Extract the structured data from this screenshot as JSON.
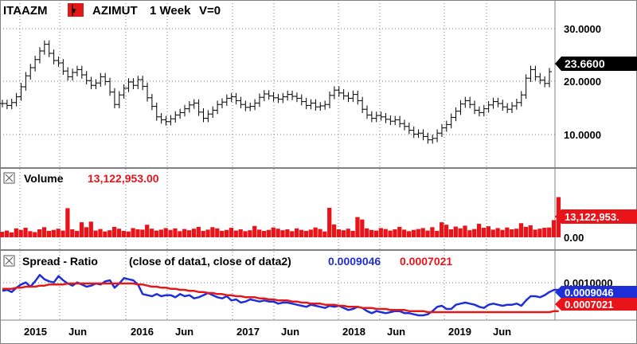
{
  "main_panel": {
    "symbol": "ITAAZM",
    "name": "AZIMUT",
    "interval": "1 Week",
    "volume_flag": "V=0",
    "last_price": "23.6600",
    "y_ticks": [
      "30.0000",
      "20.0000",
      "10.0000"
    ]
  },
  "volume_panel": {
    "title": "Volume",
    "value_text": "13,122,953.00",
    "last_badge": "13,122,953.",
    "y_tick": "0.00"
  },
  "spread_panel": {
    "title": "Spread - Ratio",
    "params": "(close of data1,  close of data2)",
    "value1": "0.0009046",
    "value2": "0.0007021",
    "y_tick": "0.0010000"
  },
  "x_axis": {
    "labels": [
      "2015",
      "Jun",
      "2016",
      "Jun",
      "2017",
      "Jun",
      "2018",
      "Jun",
      "2019",
      "Jun"
    ]
  },
  "colors": {
    "price": "#000000",
    "volume": "#e8141a",
    "ratio": "#1f2fd8",
    "average": "#e01a1a",
    "grid": "#7a7a7a"
  },
  "chart_data": {
    "type": "line",
    "x_range": [
      "2014-10",
      "2019-12"
    ],
    "series": [
      {
        "name": "ITAAZM",
        "values": [
          17.0,
          16.6,
          17.2,
          18.4,
          20.5,
          22.8,
          24.5,
          26.2,
          28.0,
          29.4,
          27.5,
          26.0,
          25.5,
          23.8,
          22.6,
          23.5,
          24.1,
          23.0,
          21.8,
          20.8,
          21.3,
          22.6,
          21.6,
          19.4,
          16.8,
          18.8,
          20.2,
          21.5,
          20.8,
          22.0,
          20.6,
          18.2,
          16.4,
          14.2,
          13.6,
          13.2,
          13.8,
          14.6,
          15.1,
          15.9,
          16.7,
          17.1,
          15.2,
          13.9,
          14.8,
          15.6,
          16.8,
          17.3,
          18.1,
          18.4,
          17.6,
          16.8,
          16.2,
          16.4,
          17.1,
          18.3,
          19.0,
          18.6,
          18.2,
          17.9,
          18.4,
          18.9,
          18.5,
          18.1,
          17.4,
          16.6,
          17.1,
          16.3,
          16.5,
          16.8,
          18.7,
          19.8,
          19.2,
          18.6,
          18.1,
          18.9,
          17.6,
          15.8,
          14.6,
          13.9,
          14.5,
          14.2,
          13.7,
          13.3,
          13.6,
          12.8,
          12.2,
          11.4,
          10.6,
          10.8,
          10.1,
          9.4,
          9.7,
          10.8,
          11.9,
          12.6,
          14.1,
          15.4,
          16.9,
          17.6,
          16.8,
          15.6,
          15.1,
          15.9,
          16.7,
          17.4,
          17.0,
          16.3,
          15.8,
          16.5,
          17.2,
          18.8,
          22.3,
          24.1,
          22.6,
          21.9,
          21.2,
          23.66
        ]
      },
      {
        "name": "Volume",
        "values": [
          1.8,
          2.2,
          1.6,
          2.9,
          2.4,
          3.1,
          2.0,
          1.7,
          2.6,
          3.3,
          2.1,
          2.4,
          2.8,
          2.2,
          9.5,
          2.6,
          2.1,
          4.9,
          3.3,
          5.1,
          2.2,
          2.7,
          1.9,
          2.3,
          3.4,
          2.8,
          2.1,
          1.9,
          3.0,
          2.6,
          2.5,
          4.1,
          2.8,
          2.2,
          2.5,
          3.0,
          2.4,
          2.9,
          2.0,
          2.7,
          2.3,
          2.8,
          3.4,
          2.1,
          2.5,
          3.3,
          2.9,
          2.1,
          2.4,
          3.1,
          2.2,
          2.6,
          2.0,
          2.3,
          3.7,
          2.5,
          2.1,
          2.4,
          3.2,
          2.8,
          2.3,
          2.6,
          2.0,
          2.9,
          2.4,
          2.1,
          2.5,
          3.2,
          2.7,
          1.9,
          9.6,
          4.2,
          2.6,
          2.3,
          2.8,
          2.1,
          6.6,
          5.8,
          2.9,
          2.4,
          2.2,
          3.0,
          2.7,
          2.2,
          2.6,
          3.4,
          2.5,
          2.0,
          2.4,
          2.7,
          3.0,
          2.2,
          3.3,
          2.1,
          4.9,
          4.1,
          2.6,
          3.5,
          2.9,
          3.8,
          2.3,
          2.7,
          4.4,
          3.1,
          3.6,
          2.5,
          3.0,
          2.4,
          3.2,
          2.6,
          2.8,
          4.6,
          3.4,
          3.9,
          2.5,
          2.8,
          3.1,
          3.2,
          5.6,
          13.1
        ]
      },
      {
        "name": "Ratio",
        "values": [
          0.00089,
          0.0009,
          0.00088,
          0.00092,
          0.00095,
          0.00097,
          0.00093,
          0.00098,
          0.00104,
          0.001,
          0.00098,
          0.00097,
          0.00103,
          0.00099,
          0.00096,
          0.00094,
          0.00097,
          0.00095,
          0.00093,
          0.00094,
          0.00096,
          0.00095,
          0.00098,
          0.00099,
          0.00092,
          0.00096,
          0.00101,
          0.001,
          0.00099,
          0.00095,
          0.00086,
          0.00085,
          0.00084,
          0.00086,
          0.00084,
          0.00085,
          0.00085,
          0.00083,
          0.00086,
          0.00084,
          0.00085,
          0.00082,
          0.00083,
          0.00085,
          0.00087,
          0.00085,
          0.00083,
          0.00082,
          0.00084,
          0.0008,
          0.00081,
          0.00078,
          0.00079,
          0.00081,
          0.0008,
          0.00079,
          0.0008,
          0.00079,
          0.00079,
          0.00077,
          0.00078,
          0.00078,
          0.00077,
          0.00076,
          0.00075,
          0.00074,
          0.00076,
          0.00075,
          0.00074,
          0.00073,
          0.00075,
          0.00074,
          0.00075,
          0.00073,
          0.00071,
          0.00072,
          0.00074,
          0.00073,
          0.0007,
          0.00068,
          0.0007,
          0.00069,
          0.00068,
          0.00069,
          0.0007,
          0.0007,
          0.00068,
          0.00068,
          0.00067,
          0.00066,
          0.00066,
          0.00067,
          0.0007,
          0.00074,
          0.00075,
          0.00072,
          0.00072,
          0.00076,
          0.00077,
          0.00078,
          0.00077,
          0.00076,
          0.00074,
          0.00073,
          0.00076,
          0.00077,
          0.00076,
          0.00075,
          0.00076,
          0.00076,
          0.00077,
          0.00075,
          0.0008,
          0.00084,
          0.00084,
          0.00083,
          0.00085,
          0.00088,
          0.0009,
          0.0009
        ]
      },
      {
        "name": "Average",
        "values": [
          0.00091,
          0.00091,
          0.00091,
          0.00092,
          0.00092,
          0.00093,
          0.00093,
          0.00093,
          0.00094,
          0.00094,
          0.00095,
          0.00095,
          0.00095,
          0.00095,
          0.00096,
          0.00096,
          0.00096,
          0.00096,
          0.00096,
          0.00096,
          0.00096,
          0.00096,
          0.00096,
          0.00096,
          0.00096,
          0.00096,
          0.00096,
          0.00096,
          0.00096,
          0.00095,
          0.00095,
          0.00094,
          0.00093,
          0.00093,
          0.00092,
          0.00092,
          0.00091,
          0.00091,
          0.0009,
          0.0009,
          0.00089,
          0.00089,
          0.00088,
          0.00088,
          0.00087,
          0.00087,
          0.00086,
          0.00086,
          0.00085,
          0.00085,
          0.00084,
          0.00084,
          0.00083,
          0.00083,
          0.00083,
          0.00082,
          0.00082,
          0.00081,
          0.00081,
          0.0008,
          0.0008,
          0.0008,
          0.00079,
          0.00079,
          0.00078,
          0.00078,
          0.00077,
          0.00077,
          0.00077,
          0.00076,
          0.00076,
          0.00076,
          0.00075,
          0.00075,
          0.00074,
          0.00074,
          0.00074,
          0.00073,
          0.00073,
          0.00073,
          0.00072,
          0.00072,
          0.00072,
          0.00071,
          0.00071,
          0.00071,
          0.00071,
          0.0007,
          0.0007,
          0.0007,
          0.0007,
          0.00069,
          0.00069,
          0.00069,
          0.00069,
          0.00069,
          0.00069,
          0.00069,
          0.00069,
          0.00069,
          0.00069,
          0.00069,
          0.00069,
          0.00069,
          0.00069,
          0.00069,
          0.00069,
          0.00069,
          0.00069,
          0.00069,
          0.00069,
          0.00069,
          0.00069,
          0.00069,
          0.00069,
          0.00069,
          0.00069,
          0.00069,
          0.0007,
          0.0007
        ]
      }
    ],
    "y_ranges": {
      "price": [
        5,
        35
      ],
      "volume": [
        0,
        13.5
      ],
      "ratio": [
        0.00063,
        0.00108
      ]
    },
    "grid": true
  }
}
